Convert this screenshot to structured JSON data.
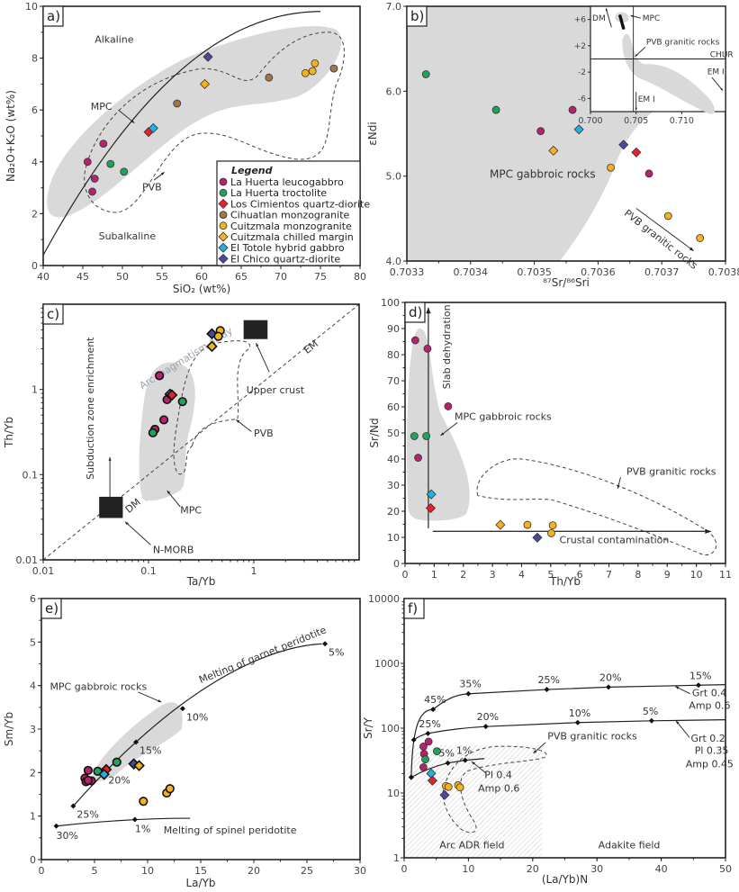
{
  "figure": {
    "legend": {
      "title": "Legend",
      "entries": [
        {
          "id": "lhl",
          "label": "La Huerta leucogabbro",
          "shape": "circle",
          "color": "#b5236b"
        },
        {
          "id": "lht",
          "label": "La Huerta troctolite",
          "shape": "circle",
          "color": "#1fa35a"
        },
        {
          "id": "lcq",
          "label": "Los Cimientos quartz-diorite",
          "shape": "diamond",
          "color": "#e8202a"
        },
        {
          "id": "chm",
          "label": "Cihuatlan monzogranite",
          "shape": "circle",
          "color": "#a0764a"
        },
        {
          "id": "cum",
          "label": "Cuitzmala monzogranite",
          "shape": "circle",
          "color": "#f5b21a"
        },
        {
          "id": "cuc",
          "label": "Cuitzmala chilled margin",
          "shape": "diamond",
          "color": "#f5b21a"
        },
        {
          "id": "eth",
          "label": "El Totole hybrid gabbro",
          "shape": "diamond",
          "color": "#25aee0"
        },
        {
          "id": "ecq",
          "label": "El Chico quartz-diorite",
          "shape": "diamond",
          "color": "#4a4a9c"
        }
      ]
    }
  },
  "chart_data": [
    {
      "panel": "a)",
      "type": "scatter",
      "xlabel": "SiO₂ (wt%)",
      "ylabel": "Na₂O+K₂O (wt%)",
      "xlim": [
        40,
        80
      ],
      "ylim": [
        0,
        10
      ],
      "xticks": [
        40,
        45,
        50,
        55,
        60,
        65,
        70,
        75,
        80
      ],
      "yticks": [
        0,
        2,
        4,
        6,
        8,
        10
      ],
      "scale": "linear",
      "annotations": [
        "Alkaline",
        "Subalkaline",
        "MPC",
        "PVB"
      ],
      "points": [
        {
          "series": "lhl",
          "x": 45.6,
          "y": 4.0
        },
        {
          "series": "lhl",
          "x": 47.6,
          "y": 4.7
        },
        {
          "series": "lhl",
          "x": 46.5,
          "y": 3.35
        },
        {
          "series": "lhl",
          "x": 46.2,
          "y": 2.85
        },
        {
          "series": "lht",
          "x": 48.5,
          "y": 3.92
        },
        {
          "series": "lht",
          "x": 50.2,
          "y": 3.62
        },
        {
          "series": "lcq",
          "x": 53.3,
          "y": 5.15
        },
        {
          "series": "eth",
          "x": 53.9,
          "y": 5.3
        },
        {
          "series": "chm",
          "x": 56.9,
          "y": 6.25
        },
        {
          "series": "cuc",
          "x": 60.4,
          "y": 7.0
        },
        {
          "series": "ecq",
          "x": 60.8,
          "y": 8.05
        },
        {
          "series": "chm",
          "x": 68.5,
          "y": 7.25
        },
        {
          "series": "cum",
          "x": 73.1,
          "y": 7.42
        },
        {
          "series": "cum",
          "x": 74.0,
          "y": 7.5
        },
        {
          "series": "cum",
          "x": 74.3,
          "y": 7.8
        },
        {
          "series": "chm",
          "x": 76.7,
          "y": 7.6
        }
      ]
    },
    {
      "panel": "b)",
      "type": "scatter",
      "xlabel": "⁸⁷Sr/⁸⁶Sri",
      "ylabel": "εNdi",
      "xlim": [
        0.7033,
        0.7038
      ],
      "ylim": [
        4.0,
        7.0
      ],
      "xticks": [
        "0.7033",
        "0.7034",
        "0.7035",
        "0.7036",
        "0.7037",
        "0.7038"
      ],
      "yticks": [
        "4.0",
        "5.0",
        "6.0",
        "7.0"
      ],
      "scale": "linear",
      "annotations": [
        "MPC gabbroic rocks",
        "PVB granitic rocks"
      ],
      "inset": {
        "xticks": [
          "0.700",
          "0.705",
          "0.710"
        ],
        "yticks": [
          "+6",
          "+2",
          "-2",
          "-6"
        ],
        "annotations": [
          "DM",
          "MPC",
          "PVB granitic rocks",
          "CHUR",
          "EM II",
          "EM I"
        ]
      },
      "points": [
        {
          "series": "lht",
          "x": 0.70333,
          "y": 6.2
        },
        {
          "series": "lht",
          "x": 0.70344,
          "y": 5.78
        },
        {
          "series": "lhl",
          "x": 0.70351,
          "y": 5.53
        },
        {
          "series": "lhl",
          "x": 0.70356,
          "y": 5.78
        },
        {
          "series": "cuc",
          "x": 0.70353,
          "y": 5.3
        },
        {
          "series": "eth",
          "x": 0.70357,
          "y": 5.55
        },
        {
          "series": "ecq",
          "x": 0.70364,
          "y": 5.37
        },
        {
          "series": "lcq",
          "x": 0.70366,
          "y": 5.28
        },
        {
          "series": "cum",
          "x": 0.70362,
          "y": 5.1
        },
        {
          "series": "lhl",
          "x": 0.70368,
          "y": 5.03
        },
        {
          "series": "cum",
          "x": 0.70371,
          "y": 4.53
        },
        {
          "series": "cum",
          "x": 0.70376,
          "y": 4.27
        }
      ]
    },
    {
      "panel": "c)",
      "type": "scatter",
      "xlabel": "Ta/Yb",
      "ylabel": "Th/Yb",
      "xlim": [
        0.01,
        10
      ],
      "ylim": [
        0.01,
        10
      ],
      "xticks": [
        "0.01",
        "0.1",
        "1"
      ],
      "yticks": [
        "0.01",
        "0.1",
        "1"
      ],
      "scale": "log",
      "annotations": [
        "Arc magmatism array",
        "Subduction zone enrichment",
        "Upper crust",
        "EM",
        "PVB",
        "MPC",
        "DM",
        "N-MORB"
      ],
      "points": [
        {
          "series": "lhl",
          "x": 0.127,
          "y": 1.45
        },
        {
          "series": "lhl",
          "x": 0.15,
          "y": 0.76
        },
        {
          "series": "lhl",
          "x": 0.14,
          "y": 0.44
        },
        {
          "series": "lhl",
          "x": 0.115,
          "y": 0.34
        },
        {
          "series": "lht",
          "x": 0.11,
          "y": 0.31
        },
        {
          "series": "lht",
          "x": 0.21,
          "y": 0.72
        },
        {
          "series": "eth",
          "x": 0.16,
          "y": 0.88
        },
        {
          "series": "lcq",
          "x": 0.167,
          "y": 0.86
        },
        {
          "series": "ecq",
          "x": 0.4,
          "y": 4.5
        },
        {
          "series": "cum",
          "x": 0.48,
          "y": 4.9
        },
        {
          "series": "cum",
          "x": 0.46,
          "y": 4.2
        },
        {
          "series": "cuc",
          "x": 0.4,
          "y": 3.2
        }
      ]
    },
    {
      "panel": "d)",
      "type": "scatter",
      "xlabel": "Th/Yb",
      "ylabel": "Sr/Nd",
      "xlim": [
        0,
        11
      ],
      "ylim": [
        0,
        100
      ],
      "xticks": [
        0,
        1,
        2,
        3,
        4,
        5,
        6,
        7,
        8,
        9,
        10,
        11
      ],
      "yticks": [
        0,
        10,
        20,
        30,
        40,
        50,
        60,
        70,
        80,
        90,
        100
      ],
      "scale": "linear",
      "annotations": [
        "Slab dehydration",
        "MPC gabbroic rocks",
        "PVB granitic rocks",
        "Crustal contamination"
      ],
      "points": [
        {
          "series": "lhl",
          "x": 0.35,
          "y": 85.5
        },
        {
          "series": "lhl",
          "x": 0.77,
          "y": 82.3
        },
        {
          "series": "lhl",
          "x": 1.48,
          "y": 60.2
        },
        {
          "series": "lhl",
          "x": 0.45,
          "y": 40.5
        },
        {
          "series": "lht",
          "x": 0.32,
          "y": 48.8
        },
        {
          "series": "lht",
          "x": 0.73,
          "y": 48.8
        },
        {
          "series": "eth",
          "x": 0.9,
          "y": 26.5
        },
        {
          "series": "lcq",
          "x": 0.88,
          "y": 21.2
        },
        {
          "series": "cuc",
          "x": 3.27,
          "y": 14.8
        },
        {
          "series": "cum",
          "x": 4.2,
          "y": 14.8
        },
        {
          "series": "cum",
          "x": 5.07,
          "y": 14.6
        },
        {
          "series": "cum",
          "x": 5.02,
          "y": 11.6
        },
        {
          "series": "ecq",
          "x": 4.54,
          "y": 9.9
        }
      ]
    },
    {
      "panel": "e)",
      "type": "scatter",
      "xlabel": "La/Yb",
      "ylabel": "Sm/Yb",
      "xlim": [
        0,
        30
      ],
      "ylim": [
        0,
        6
      ],
      "xticks": [
        0,
        5,
        10,
        15,
        20,
        25,
        30
      ],
      "yticks": [
        0,
        1,
        2,
        3,
        4,
        5,
        6
      ],
      "scale": "linear",
      "annotations": [
        "MPC gabbroic rocks",
        "Melting of garnet peridotite",
        "Melting of spinel peridotite"
      ],
      "models": [
        {
          "name": "Melting of garnet peridotite",
          "nodes": [
            {
              "x": 3.0,
              "y": 1.23,
              "label": "25%"
            },
            {
              "x": 8.9,
              "y": 2.7,
              "label": "15%"
            },
            {
              "x": 13.3,
              "y": 3.47,
              "label": "10%"
            },
            {
              "x": 26.7,
              "y": 4.96,
              "label": "5%"
            }
          ],
          "extra_label": {
            "text": "20%"
          }
        },
        {
          "name": "Melting of spinel peridotite",
          "nodes": [
            {
              "x": 1.4,
              "y": 0.77,
              "label": "30%"
            },
            {
              "x": 8.8,
              "y": 0.92,
              "label": "1%"
            }
          ],
          "end_x": 14.0,
          "end_y": 0.95
        }
      ],
      "points": [
        {
          "series": "lhl",
          "x": 4.4,
          "y": 2.05
        },
        {
          "series": "lhl",
          "x": 4.1,
          "y": 1.87
        },
        {
          "series": "lhl",
          "x": 4.2,
          "y": 1.79
        },
        {
          "series": "lhl",
          "x": 4.7,
          "y": 1.81
        },
        {
          "series": "lhl",
          "x": 4.4,
          "y": 1.82
        },
        {
          "series": "lht",
          "x": 5.3,
          "y": 2.03
        },
        {
          "series": "lht",
          "x": 7.1,
          "y": 2.24
        },
        {
          "series": "lcq",
          "x": 6.1,
          "y": 2.07
        },
        {
          "series": "eth",
          "x": 5.9,
          "y": 1.96
        },
        {
          "series": "ecq",
          "x": 8.7,
          "y": 2.2
        },
        {
          "series": "cuc",
          "x": 9.2,
          "y": 2.16
        },
        {
          "series": "cum",
          "x": 9.6,
          "y": 1.34
        },
        {
          "series": "cum",
          "x": 11.8,
          "y": 1.53
        },
        {
          "series": "cum",
          "x": 12.1,
          "y": 1.63
        }
      ]
    },
    {
      "panel": "f)",
      "type": "scatter",
      "xlabel": "(La/Yb)N",
      "ylabel": "Sr/Y",
      "xlim": [
        0,
        50
      ],
      "ylim": [
        1,
        10000
      ],
      "xticks": [
        0,
        10,
        20,
        30,
        40,
        50
      ],
      "yticks": [
        "1",
        "10",
        "100",
        "1000",
        "10000"
      ],
      "scale": "x-linear, y-log",
      "annotations": [
        "PVB granitic rocks",
        "Arc ADR field",
        "Adakite field",
        "Grt 0.4 Amp 0.6",
        "Grt 0.2 Pl 0.35 Amp 0.45",
        "Pl 0.4 Amp 0.6"
      ],
      "models": [
        {
          "name": "Grt 0.4 / Amp 0.6",
          "nodes": [
            {
              "x": 1.1,
              "y": 17.5,
              "label": ""
            },
            {
              "x": 4.5,
              "y": 195,
              "label": "45%"
            },
            {
              "x": 10.0,
              "y": 340,
              "label": "35%"
            },
            {
              "x": 22.2,
              "y": 395,
              "label": "25%"
            },
            {
              "x": 31.8,
              "y": 430,
              "label": "20%"
            },
            {
              "x": 45.8,
              "y": 460,
              "label": "15%"
            }
          ]
        },
        {
          "name": "Grt 0.2 / Pl 0.35 / Amp 0.45",
          "nodes": [
            {
              "x": 1.5,
              "y": 66,
              "label": ""
            },
            {
              "x": 3.7,
              "y": 83,
              "label": "25%"
            },
            {
              "x": 12.7,
              "y": 106,
              "label": "20%"
            },
            {
              "x": 27.0,
              "y": 122,
              "label": "10%"
            },
            {
              "x": 38.5,
              "y": 130,
              "label": "5%"
            }
          ]
        },
        {
          "name": "Pl 0.4 / Amp 0.6",
          "nodes": [
            {
              "x": 1.1,
              "y": 17.5,
              "label": ""
            },
            {
              "x": 6.8,
              "y": 29,
              "label": "5%"
            },
            {
              "x": 9.5,
              "y": 32,
              "label": "1%"
            }
          ]
        }
      ],
      "points": [
        {
          "series": "lhl",
          "x": 3.8,
          "y": 62
        },
        {
          "series": "lhl",
          "x": 3.0,
          "y": 52
        },
        {
          "series": "lhl",
          "x": 3.1,
          "y": 40
        },
        {
          "series": "lhl",
          "x": 3.0,
          "y": 25
        },
        {
          "series": "lht",
          "x": 5.1,
          "y": 44
        },
        {
          "series": "lht",
          "x": 3.3,
          "y": 33
        },
        {
          "series": "eth",
          "x": 4.2,
          "y": 20
        },
        {
          "series": "lcq",
          "x": 4.4,
          "y": 15.5
        },
        {
          "series": "ecq",
          "x": 6.3,
          "y": 9.3
        },
        {
          "series": "cum",
          "x": 6.5,
          "y": 12.8
        },
        {
          "series": "cum",
          "x": 6.9,
          "y": 12.4
        },
        {
          "series": "cum",
          "x": 8.4,
          "y": 13.2
        },
        {
          "series": "cum",
          "x": 8.7,
          "y": 12.2
        }
      ]
    }
  ]
}
